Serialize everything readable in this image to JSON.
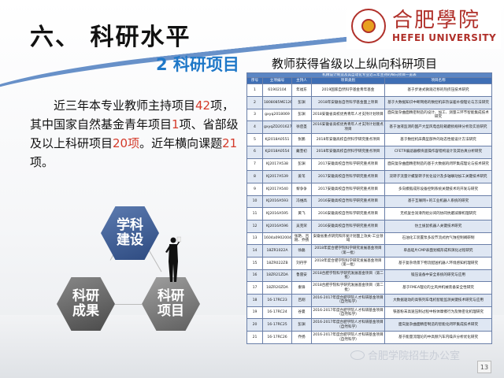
{
  "slide": {
    "title": "六、 科研水平",
    "subtitle": "2 科研项目",
    "logo": {
      "cn": "合肥學院",
      "en": "HEFEI UNIVERSITY"
    },
    "intro": {
      "p1_a": "近三年本专业教师主持项目",
      "p1_n1": "42",
      "p1_b": "项，其中国家自然基金青年项目",
      "p1_n2": "1",
      "p1_c": "项、省部级及以上科研项目",
      "p1_n3": "20项",
      "p1_d": "。近年横向课题",
      "p1_n4": "21",
      "p1_e": "项。"
    },
    "diagram": {
      "top": "学科建设",
      "left": "科研成果",
      "right": "科研项目"
    },
    "table_title": "教师获得省级以上纵向科研项目",
    "table": {
      "caption": "机械设计制造及其自动化专业近三年主持的纵向项目一览表",
      "headers": [
        "序号",
        "立项编号",
        "主持人",
        "项目类别",
        "项目名称"
      ],
      "rows": [
        [
          "1",
          "61902104",
          "年福东",
          "2019国家自然科学基金青年基金",
          "基于步进式微观迁移的热挤压技术研究"
        ],
        [
          "2",
          "1808085ME126",
          "彭渊",
          "2018年安徽省自然科学基金面上项目",
          "基于大数据知识中断网络的数控机床热误差补偿理论与方法研究"
        ],
        [
          "3",
          "gxyq2018069",
          "彭渊",
          "2018安徽省高校优秀青年人才支持计划项目",
          "面向复杂曲面精密制造的设计、加工、测量三环节智能集成技术研究"
        ],
        [
          "4",
          "gxyqZD2016276",
          "徐启圣",
          "2016安徽省高校优秀青年人才支持计划重点项目",
          "基于油液监测的国产大型风电齿轮箱磨损规律分析及实验研究"
        ],
        [
          "5",
          "KJ2018A0551",
          "张鹏",
          "2018年安徽高校自然科学研究重点项目",
          "基于数控机床典型部件的动态性能设计方法研究"
        ],
        [
          "6",
          "KJ2018A0554",
          "戴奎初",
          "2018年安徽高校自然科学研究重点项目",
          "CFETR偏滤器模块遥操作容错构设计及其仿真分析研究"
        ],
        [
          "7",
          "KJ2017A538",
          "彭渊",
          "2017安徽高校自然科学研究重点项目",
          "面向复杂曲面精密制造的基于大数据的闭环集成理论与技术研究"
        ],
        [
          "8",
          "KJ2017A539",
          "姜苇",
          "2017安徽高校自然科学研究重点项目",
          "双转子流量计螺旋转子优化设计及多轴联动加工关键技术研究"
        ],
        [
          "9",
          "KJ2017A540",
          "黎争争",
          "2017安徽高校自然科学研究重点项目",
          "多向模锻成形设备控制系统关键技术的开发与研究"
        ],
        [
          "10",
          "KJ2016A593",
          "冯维高",
          "2016安徽高校自然科学研究重点项目",
          "基于互联网+的工业机器人系统的研究"
        ],
        [
          "11",
          "KJ2016A595",
          "黄飞",
          "2016安徽高校自然科学研究重点项目",
          "无机复合润滑剂组分间的协同抗磨减摩机理研究"
        ],
        [
          "12",
          "KJ2016A596",
          "吴克荣",
          "2016安徽高校自然科学研究重点项目",
          "仿土拔鼠机器人关键技术研究"
        ],
        [
          "13",
          "1604a0902004",
          "张艳、吕刚、乔扬",
          "安徽省重点研究和开发计划面上攻关-工业领域",
          "石油化工装置泵多段节流式抗气蚀控制阀研制"
        ],
        [
          "14",
          "18ZR1022A",
          "徐磊",
          "2018年度合肥学院科学研究发展基金项目（第一批）",
          "单晶硅片CMP表面划痕形成和演化过程研究"
        ],
        [
          "15",
          "18ZR022ZB",
          "刘丹宇",
          "2018年度合肥学院科学研究发展基金项目（第一批）",
          "基于复杂场景下物流配送机器人环境感知机理研究"
        ],
        [
          "16",
          "18ZR21ZDA",
          "鲁雷安",
          "2018合肥学院科学研究发展基金项目（第二批）",
          "锻压设备中安全系统的研究与应用"
        ],
        [
          "17",
          "18ZR20ZDA",
          "秦锋",
          "2018合肥学院科学研究发展基金项目（第二批）",
          "基于FMEA理论的立风井机械装备安全性研究"
        ],
        [
          "18",
          "16-17RC23",
          "吕刚",
          "2016-2017年度合肥学院人才科研基金项目（自然科学）",
          "大数据驱动的高铁列车电机智能监测关键技术研究与应用"
        ],
        [
          "19",
          "16-17RC24",
          "谷曼",
          "2016-2017年度合肥学院人才科研基金项目（自然科学）",
          "铁基粉末高速压制过程中粉体摩擦行为及致密化机理研究"
        ],
        [
          "20",
          "16-17RC25",
          "彭渊",
          "2016-2017年度合肥学院人才科研基金项目（自然科学）",
          "面向复杂曲面精密制造的智能化闭环集成技术研究"
        ],
        [
          "21",
          "16-17RC26",
          "乔扬",
          "2016-2017年度合肥学院人才科研基金项目（自然科学）",
          "基于能量流理论的中高频汽车内噪声分析优化研究"
        ]
      ]
    },
    "watermark": "合肥学院招生办公室",
    "page_number": "13",
    "colors": {
      "accent_blue": "#1f78c8",
      "highlight_red": "#d43a2a",
      "logo_red": "#b0302a",
      "table_header": "#3f6fb5"
    }
  }
}
